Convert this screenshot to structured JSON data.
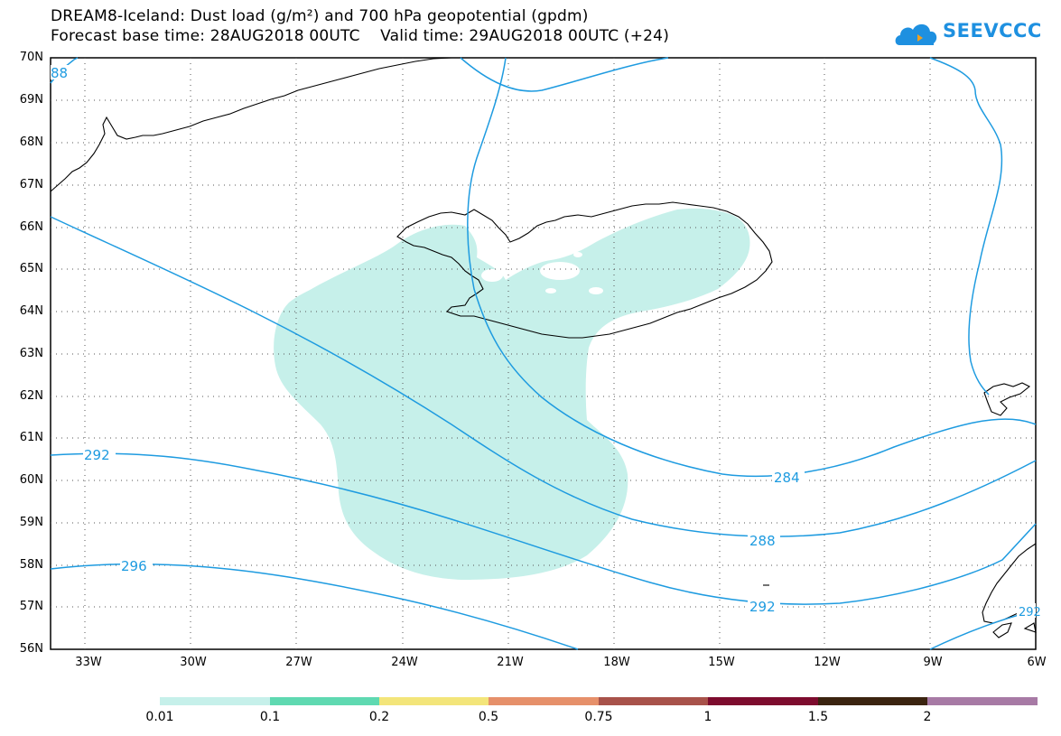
{
  "title": {
    "line1": "DREAM8-Iceland: Dust load (g/m²) and 700 hPa geopotential (gpdm)",
    "line2": "Forecast base time: 28AUG2018 00UTC    Valid time: 29AUG2018 00UTC (+24)"
  },
  "logo": {
    "text": "SEEVCCC",
    "icon": "cloud-icon",
    "color": "#1e90e0"
  },
  "map": {
    "lat_labels": [
      "70N",
      "69N",
      "68N",
      "67N",
      "66N",
      "65N",
      "64N",
      "63N",
      "62N",
      "61N",
      "60N",
      "59N",
      "58N",
      "57N",
      "56N"
    ],
    "lon_labels": [
      "33W",
      "30W",
      "27W",
      "24W",
      "21W",
      "18W",
      "15W",
      "12W",
      "9W",
      "6W"
    ],
    "lat_range": [
      56,
      70
    ],
    "lon_range": [
      -34.0,
      -6.0
    ],
    "contour_color": "#1e9be0",
    "coast_color": "#000000",
    "dust_color": "#c6f0ea",
    "contour_labels": [
      "88",
      "292",
      "296",
      "284",
      "288",
      "292",
      "292"
    ]
  },
  "colorbar": {
    "labels": [
      "0.01",
      "0.1",
      "0.2",
      "0.5",
      "0.75",
      "1",
      "1.5",
      "2"
    ],
    "colors": [
      "#c6f0ea",
      "#5fd9b1",
      "#f3e57a",
      "#e6906a",
      "#a8524a",
      "#7d0c2e",
      "#3b2410",
      "#a77aa5"
    ]
  }
}
